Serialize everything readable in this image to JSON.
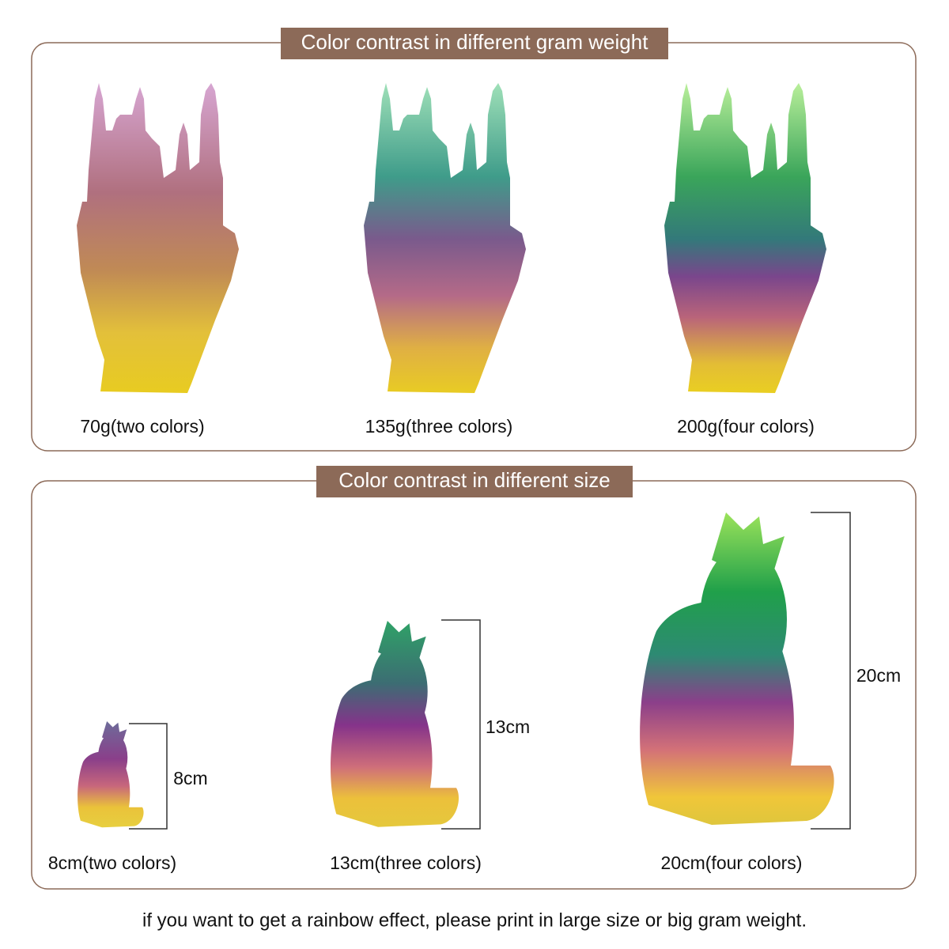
{
  "sections": [
    {
      "title": "Color contrast in different gram weight",
      "items": [
        {
          "caption": "70g(two colors)"
        },
        {
          "caption": "135g(three colors)"
        },
        {
          "caption": "200g(four colors)"
        }
      ]
    },
    {
      "title": "Color contrast in different size",
      "items": [
        {
          "caption": "8cm(two colors)",
          "height_label": "8cm"
        },
        {
          "caption": "13cm(three colors)",
          "height_label": "13cm"
        },
        {
          "caption": "20cm(four colors)",
          "height_label": "20cm"
        }
      ]
    }
  ],
  "footer": "if you want to get a rainbow effect, please print in large size or big gram weight."
}
